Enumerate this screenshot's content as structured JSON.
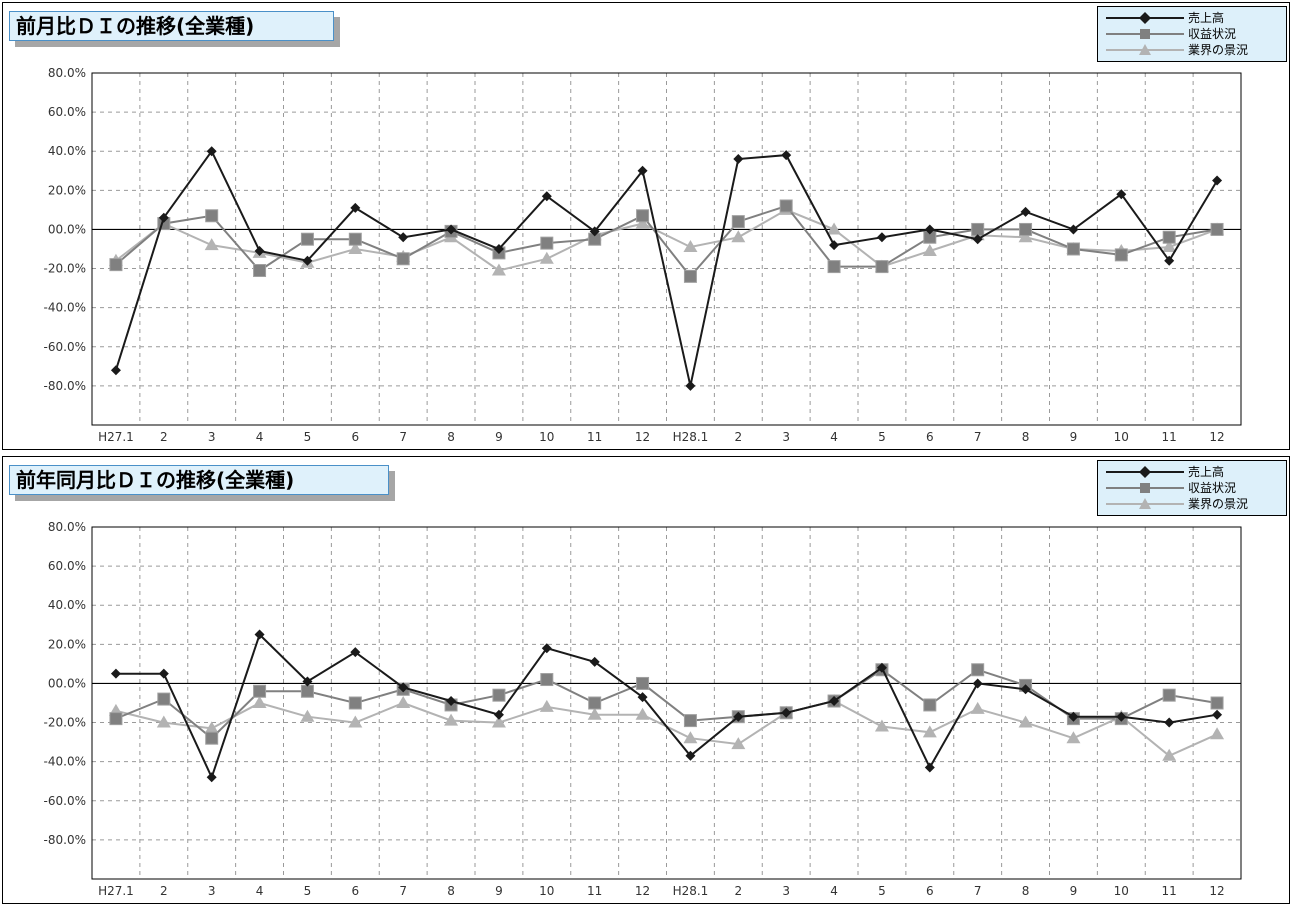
{
  "legend": {
    "sales": "売上高",
    "profit": "収益状況",
    "industry": "業界の景況"
  },
  "colors": {
    "sales": "#1a1a1a",
    "profit": "#808080",
    "industry": "#b3b3b3",
    "title_bg": "#dff1fb",
    "legend_bg": "#ddf0fa"
  },
  "chart_data": [
    {
      "type": "line",
      "title": "前月比ＤＩの推移(全業種)",
      "categories": [
        "H27.1",
        "2",
        "3",
        "4",
        "5",
        "6",
        "7",
        "8",
        "9",
        "10",
        "11",
        "12",
        "H28.1",
        "2",
        "3",
        "4",
        "5",
        "6",
        "7",
        "8",
        "9",
        "10",
        "11",
        "12"
      ],
      "ytick_labels": [
        "80.0%",
        "60.0%",
        "40.0%",
        "20.0%",
        "00.0%",
        "-20.0%",
        "-40.0%",
        "-60.0%",
        "-80.0%"
      ],
      "ylim": [
        -100,
        80
      ],
      "grid": true,
      "legend_position": "top-right",
      "series": [
        {
          "name": "売上高",
          "marker": "diamond",
          "values": [
            -72,
            6,
            40,
            -11,
            -16,
            11,
            -4,
            0,
            -10,
            17,
            -1,
            30,
            -80,
            36,
            38,
            -8,
            -4,
            0,
            -5,
            9,
            0,
            18,
            -16,
            25
          ]
        },
        {
          "name": "収益状況",
          "marker": "square",
          "values": [
            -18,
            3,
            7,
            -21,
            -5,
            -5,
            -15,
            -1,
            -12,
            -7,
            -5,
            7,
            -24,
            4,
            12,
            -19,
            -19,
            -4,
            0,
            0,
            -10,
            -13,
            -4,
            0
          ]
        },
        {
          "name": "業界の景況",
          "marker": "triangle",
          "values": [
            -16,
            3,
            -8,
            -12,
            -17,
            -10,
            -14,
            -4,
            -21,
            -15,
            -3,
            3,
            -9,
            -4,
            10,
            0,
            -19,
            -11,
            -3,
            -4,
            -10,
            -11,
            -9,
            0
          ]
        }
      ]
    },
    {
      "type": "line",
      "title": "前年同月比ＤＩの推移(全業種)",
      "categories": [
        "H27.1",
        "2",
        "3",
        "4",
        "5",
        "6",
        "7",
        "8",
        "9",
        "10",
        "11",
        "12",
        "H28.1",
        "2",
        "3",
        "4",
        "5",
        "6",
        "7",
        "8",
        "9",
        "10",
        "11",
        "12"
      ],
      "ytick_labels": [
        "80.0%",
        "60.0%",
        "40.0%",
        "20.0%",
        "00.0%",
        "-20.0%",
        "-40.0%",
        "-60.0%",
        "-80.0%"
      ],
      "ylim": [
        -100,
        80
      ],
      "grid": true,
      "legend_position": "top-right",
      "series": [
        {
          "name": "売上高",
          "marker": "diamond",
          "values": [
            5,
            5,
            -48,
            25,
            1,
            16,
            -2,
            -9,
            -16,
            18,
            11,
            -7,
            -37,
            -17,
            -15,
            -9,
            8,
            -43,
            0,
            -3,
            -17,
            -17,
            -20,
            -16
          ]
        },
        {
          "name": "収益状況",
          "marker": "square",
          "values": [
            -18,
            -8,
            -28,
            -4,
            -4,
            -10,
            -3,
            -11,
            -6,
            2,
            -10,
            0,
            -19,
            -17,
            -15,
            -9,
            7,
            -11,
            7,
            -1,
            -18,
            -18,
            -6,
            -10
          ]
        },
        {
          "name": "業界の景況",
          "marker": "triangle",
          "values": [
            -14,
            -20,
            -23,
            -10,
            -17,
            -20,
            -10,
            -19,
            -20,
            -12,
            -16,
            -16,
            -28,
            -31,
            -15,
            -9,
            -22,
            -25,
            -13,
            -20,
            -28,
            -17,
            -37,
            -26
          ]
        }
      ]
    }
  ]
}
